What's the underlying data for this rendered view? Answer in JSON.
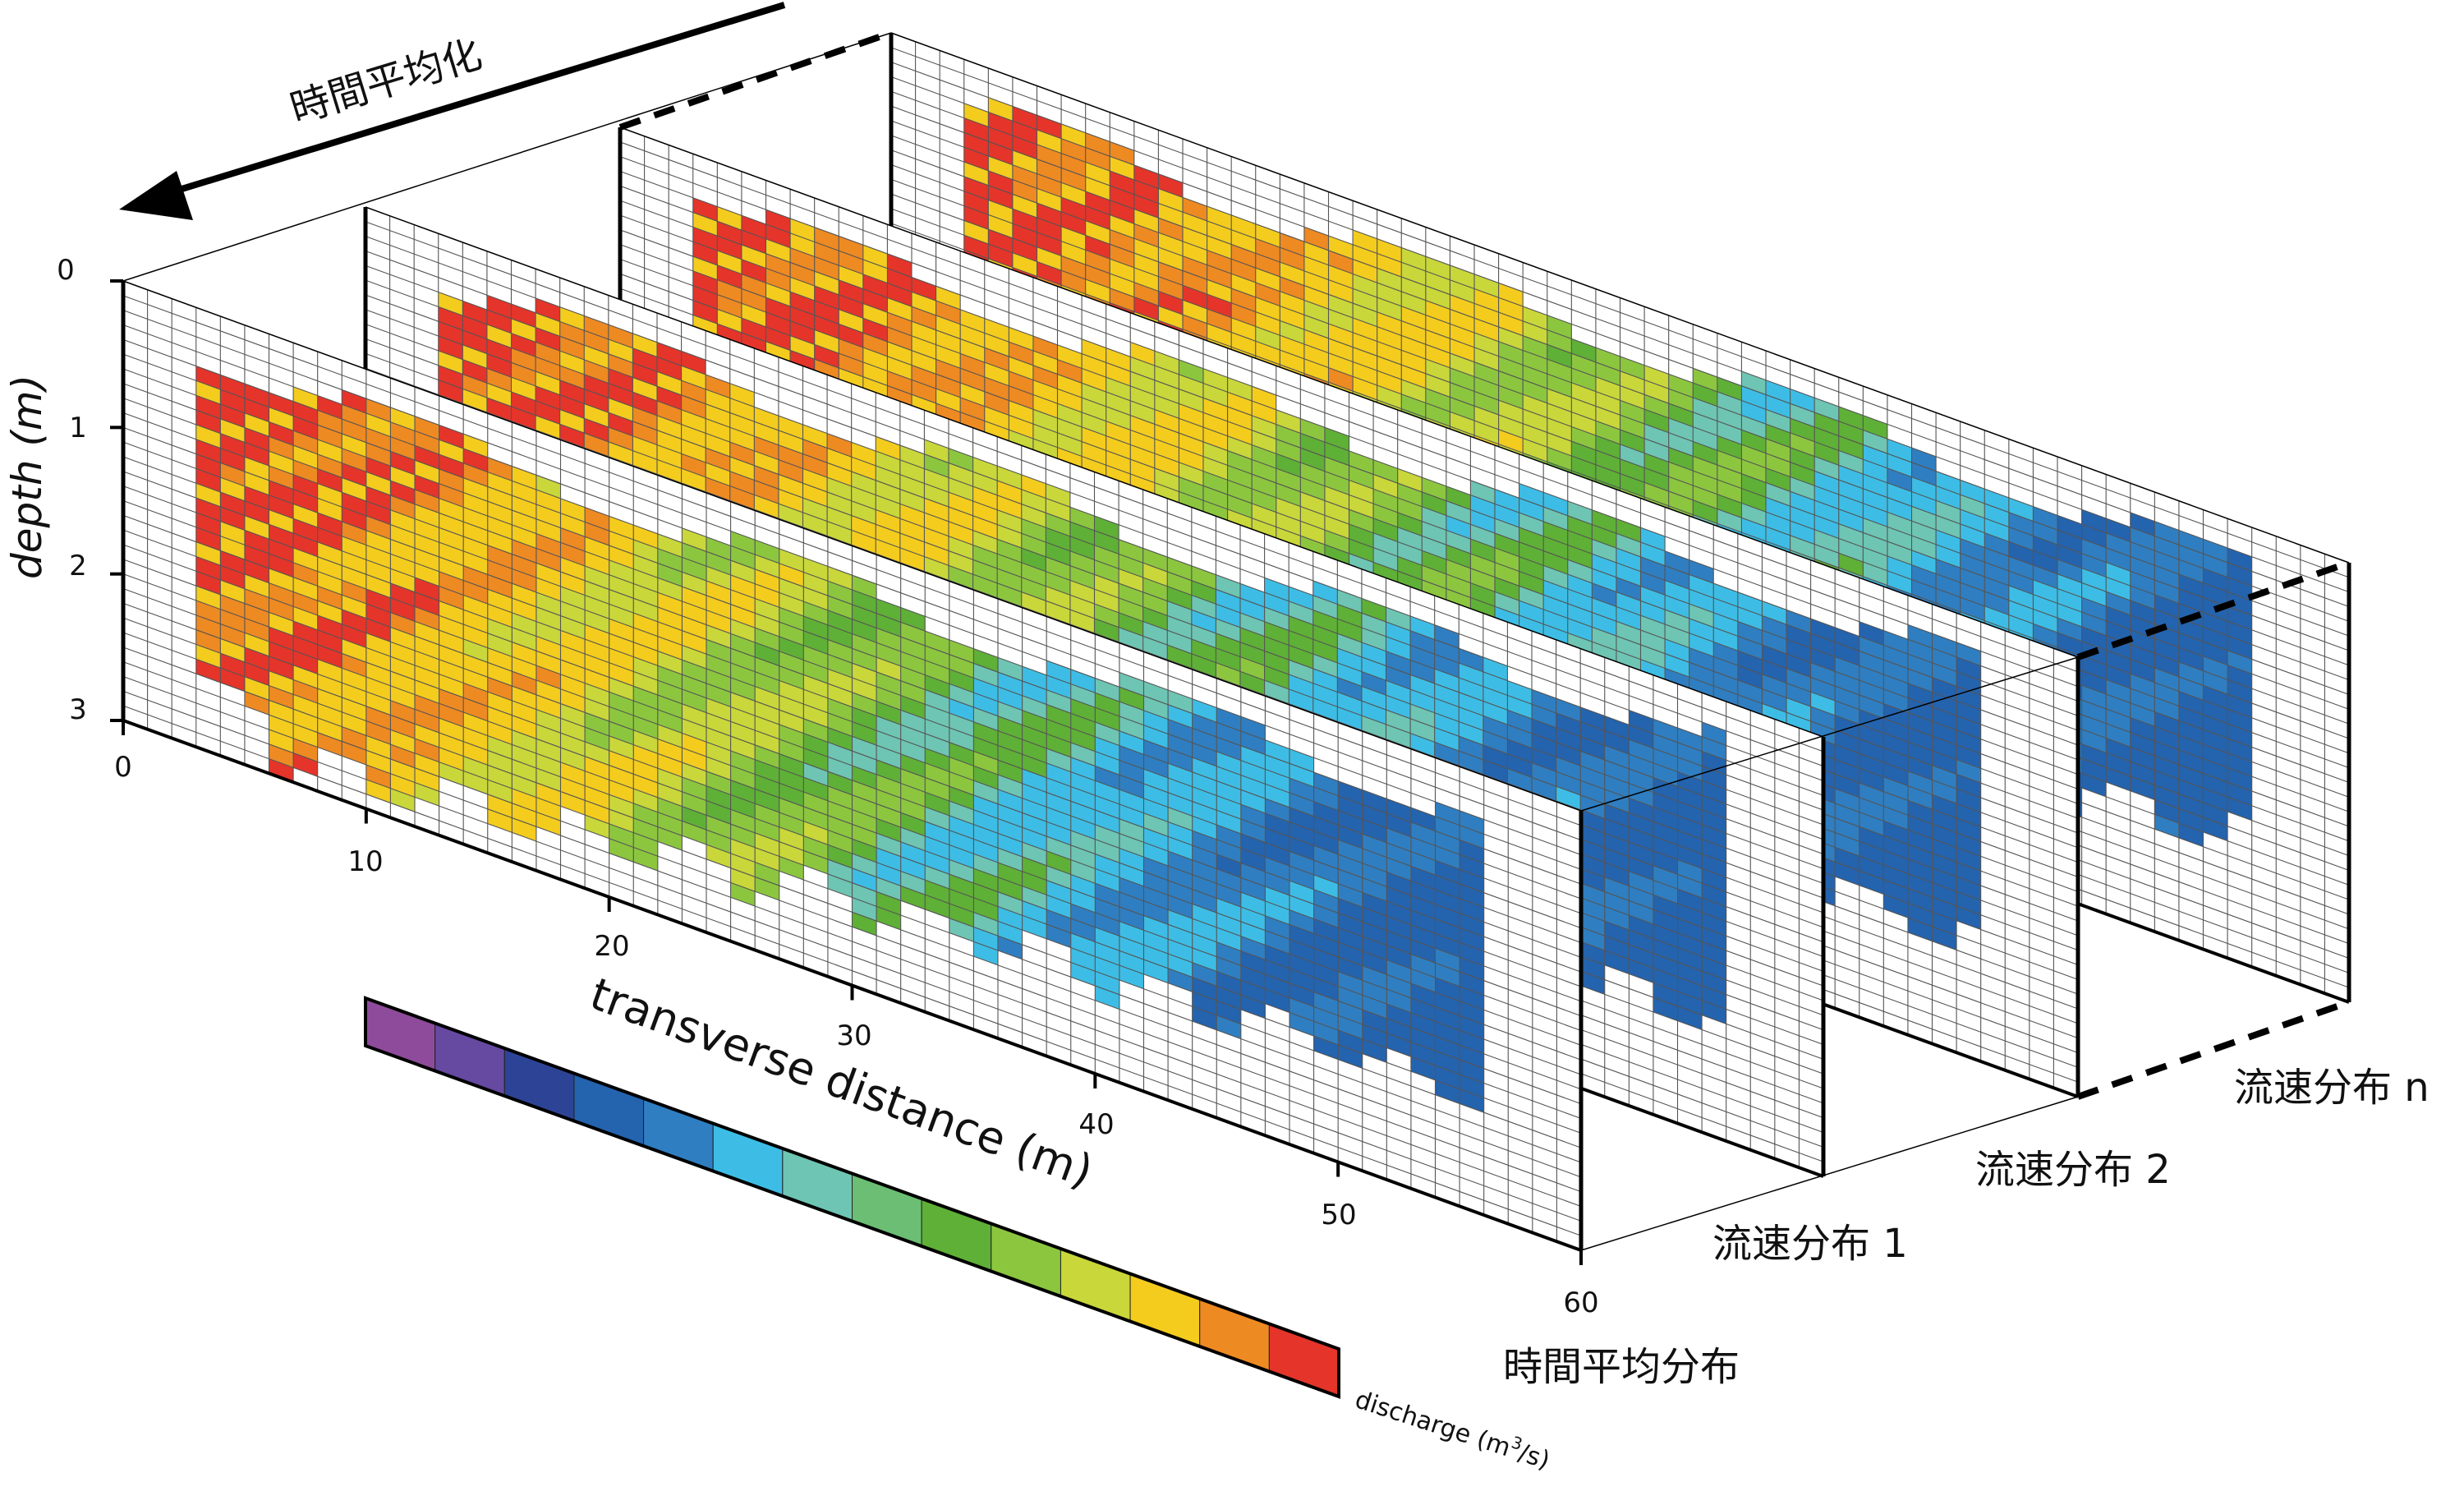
{
  "header": {
    "direction_label": "時間平均化"
  },
  "axes": {
    "y_label": "depth (m)",
    "y_ticks": [
      "0",
      "1",
      "2",
      "3"
    ],
    "x_label": "transverse distance (m)",
    "x_ticks": [
      "0",
      "10",
      "20",
      "30",
      "40",
      "50",
      "60"
    ],
    "y_range": [
      0,
      3
    ],
    "x_range": [
      0,
      60
    ]
  },
  "panels": [
    {
      "label": "時間平均分布"
    },
    {
      "label": "流速分布 1"
    },
    {
      "label": "流速分布 2"
    },
    {
      "label": "流速分布 n"
    }
  ],
  "colorbar": {
    "label_prefix": "discharge (m",
    "label_sup": "3",
    "label_suffix": "/s)",
    "colors": [
      "#8E4B9B",
      "#6649A0",
      "#2D4496",
      "#2463AE",
      "#2F7EC1",
      "#3DBDE5",
      "#6EC5B3",
      "#6BBE73",
      "#5FB036",
      "#8CC63F",
      "#C9D73A",
      "#F4CC1D",
      "#EE8A22",
      "#E5342A"
    ]
  }
}
